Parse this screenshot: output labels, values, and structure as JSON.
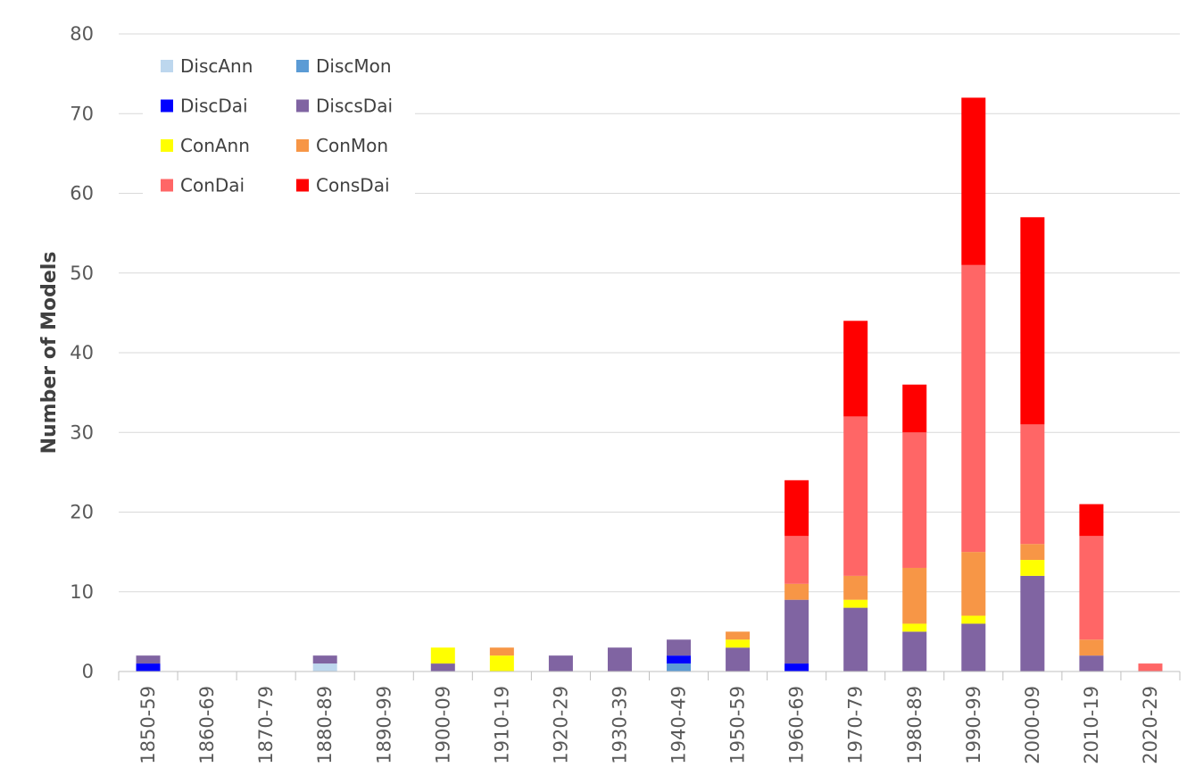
{
  "chart_data": {
    "type": "bar",
    "stacked": true,
    "title": "",
    "xlabel": "",
    "ylabel": "Number of Models",
    "ylim": [
      0,
      80
    ],
    "yticks": [
      0,
      10,
      20,
      30,
      40,
      50,
      60,
      70,
      80
    ],
    "grid": true,
    "legend_position": "top-left",
    "categories": [
      "1850-59",
      "1860-69",
      "1870-79",
      "1880-89",
      "1890-99",
      "1900-09",
      "1910-19",
      "1920-29",
      "1930-39",
      "1940-49",
      "1950-59",
      "1960-69",
      "1970-79",
      "1980-89",
      "1990-99",
      "2000-09",
      "2010-19",
      "2020-29"
    ],
    "series": [
      {
        "name": "DiscAnn",
        "color": "#bdd7ee",
        "values": [
          0,
          0,
          0,
          1,
          0,
          0,
          0,
          0,
          0,
          0,
          0,
          0,
          0,
          0,
          0,
          0,
          0,
          0
        ]
      },
      {
        "name": "DiscMon",
        "color": "#5b9bd5",
        "values": [
          0,
          0,
          0,
          0,
          0,
          0,
          0,
          0,
          0,
          1,
          0,
          0,
          0,
          0,
          0,
          0,
          0,
          0
        ]
      },
      {
        "name": "DiscDai",
        "color": "#0000ff",
        "values": [
          1,
          0,
          0,
          0,
          0,
          0,
          0,
          0,
          0,
          1,
          0,
          1,
          0,
          0,
          0,
          0,
          0,
          0
        ]
      },
      {
        "name": "DiscsDai",
        "color": "#8064a2",
        "values": [
          1,
          0,
          0,
          1,
          0,
          1,
          0,
          2,
          3,
          2,
          3,
          8,
          8,
          5,
          6,
          12,
          2,
          0
        ]
      },
      {
        "name": "ConAnn",
        "color": "#ffff00",
        "values": [
          0,
          0,
          0,
          0,
          0,
          2,
          2,
          0,
          0,
          0,
          1,
          0,
          1,
          1,
          1,
          2,
          0,
          0
        ]
      },
      {
        "name": "ConMon",
        "color": "#f79646",
        "values": [
          0,
          0,
          0,
          0,
          0,
          0,
          1,
          0,
          0,
          0,
          1,
          2,
          3,
          7,
          8,
          2,
          2,
          0
        ]
      },
      {
        "name": "ConDai",
        "color": "#ff6666",
        "values": [
          0,
          0,
          0,
          0,
          0,
          0,
          0,
          0,
          0,
          0,
          0,
          6,
          20,
          17,
          36,
          15,
          13,
          1
        ]
      },
      {
        "name": "ConsDai",
        "color": "#ff0000",
        "values": [
          0,
          0,
          0,
          0,
          0,
          0,
          0,
          0,
          0,
          0,
          0,
          7,
          12,
          6,
          21,
          26,
          4,
          0
        ]
      }
    ]
  }
}
